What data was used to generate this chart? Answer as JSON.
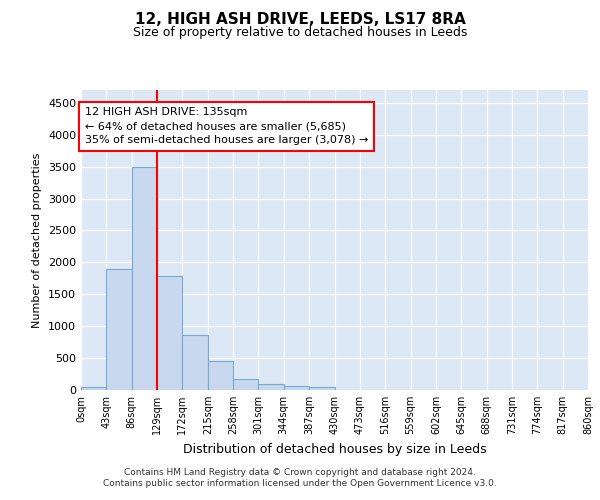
{
  "title1": "12, HIGH ASH DRIVE, LEEDS, LS17 8RA",
  "title2": "Size of property relative to detached houses in Leeds",
  "xlabel": "Distribution of detached houses by size in Leeds",
  "ylabel": "Number of detached properties",
  "bin_labels": [
    "0sqm",
    "43sqm",
    "86sqm",
    "129sqm",
    "172sqm",
    "215sqm",
    "258sqm",
    "301sqm",
    "344sqm",
    "387sqm",
    "430sqm",
    "473sqm",
    "516sqm",
    "559sqm",
    "602sqm",
    "645sqm",
    "688sqm",
    "731sqm",
    "774sqm",
    "817sqm",
    "860sqm"
  ],
  "bar_values": [
    40,
    1900,
    3500,
    1780,
    860,
    450,
    175,
    95,
    60,
    50,
    0,
    0,
    0,
    0,
    0,
    0,
    0,
    0,
    0,
    0
  ],
  "bar_color": "#c8d8ee",
  "bar_edge_color": "#7aa8d0",
  "property_line_x": 3,
  "annotation_text": "12 HIGH ASH DRIVE: 135sqm\n← 64% of detached houses are smaller (5,685)\n35% of semi-detached houses are larger (3,078) →",
  "annotation_box_color": "white",
  "annotation_box_edge": "red",
  "line_color": "red",
  "ylim": [
    0,
    4700
  ],
  "yticks": [
    0,
    500,
    1000,
    1500,
    2000,
    2500,
    3000,
    3500,
    4000,
    4500
  ],
  "footer_line1": "Contains HM Land Registry data © Crown copyright and database right 2024.",
  "footer_line2": "Contains public sector information licensed under the Open Government Licence v3.0.",
  "plot_bg_color": "#dce8f5"
}
